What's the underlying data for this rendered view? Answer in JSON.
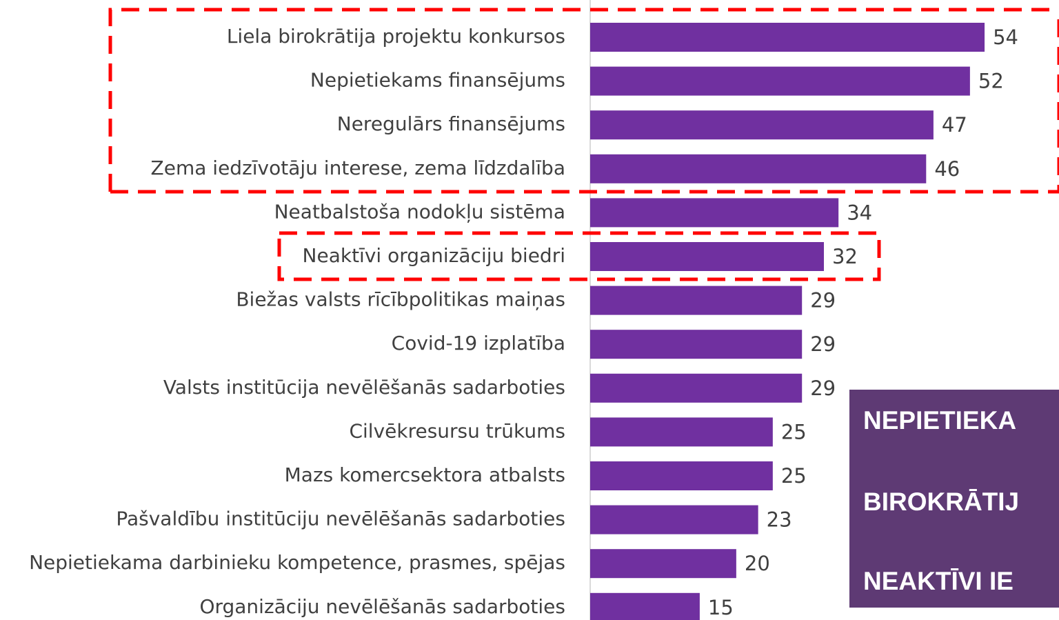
{
  "chart_data": {
    "type": "hbar",
    "categories": [
      "Liela birokrātija projektu konkursos",
      "Nepietiekams finansējums",
      "Neregulārs finansējums",
      "Zema iedzīvotāju interese, zema līdzdalība",
      "Neatbalstoša nodokļu sistēma",
      "Neaktīvi organizāciju biedri",
      "Biežas valsts rīcībpolitikas maiņas",
      "Covid-19 izplatība",
      "Valsts institūcija nevēlēšanās sadarboties",
      "Cilvēkresursu trūkums",
      "Mazs komercsektora atbalsts",
      "Pašvaldību institūciju nevēlēšanās sadarboties",
      "Nepietiekama darbinieku kompetence, prasmes, spējas",
      "Organizāciju nevēlēšanās sadarboties"
    ],
    "values": [
      54,
      52,
      47,
      46,
      34,
      32,
      29,
      29,
      29,
      25,
      25,
      23,
      20,
      15
    ],
    "color": "#7030a0",
    "xlim": [
      0,
      64
    ],
    "annotations": [
      "NEPIETIEKA",
      "BIROKRĀTIJ",
      "NEAKTĪVI IE"
    ]
  }
}
